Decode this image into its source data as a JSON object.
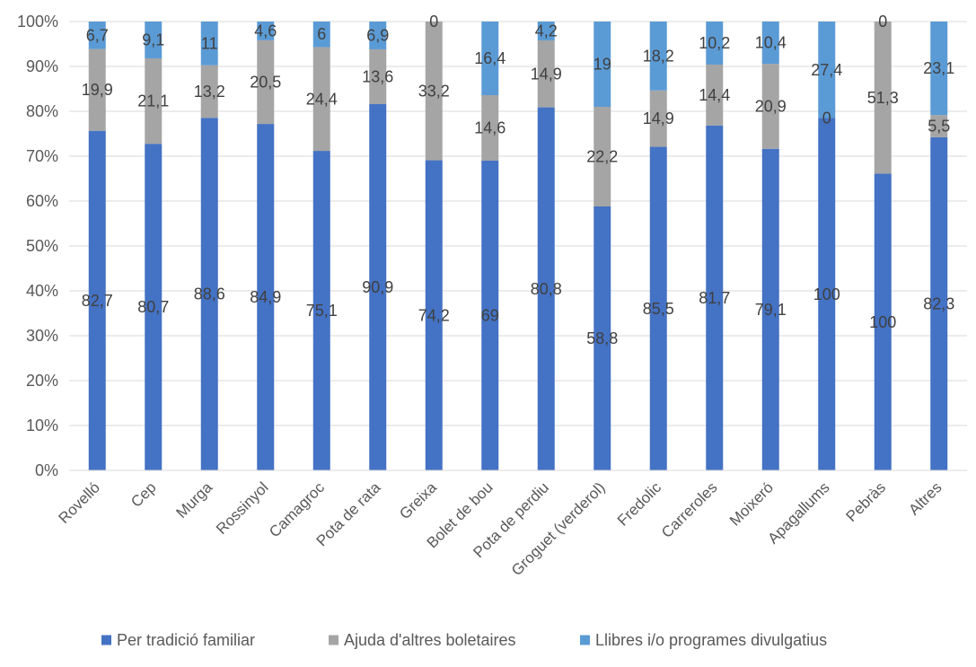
{
  "chart_data": {
    "type": "bar",
    "stacked": "percent",
    "categories": [
      "Rovelló",
      "Cep",
      "Murga",
      "Rossinyol",
      "Camagroc",
      "Pota de rata",
      "Greixa",
      "Bolet de bou",
      "Pota de perdiu",
      "Groguet (verderol)",
      "Fredolic",
      "Carreroles",
      "Moixeró",
      "Apagallums",
      "Pebràs",
      "Altres"
    ],
    "series": [
      {
        "name": "Per tradició familiar",
        "color": "#4472C4",
        "values": [
          82.7,
          80.7,
          88.6,
          84.9,
          75.1,
          90.9,
          74.2,
          69,
          80.8,
          58.8,
          85.5,
          81.7,
          79.1,
          100,
          100,
          82.3
        ]
      },
      {
        "name": "Ajuda d'altres boletaires",
        "color": "#A5A5A5",
        "values": [
          19.9,
          21.1,
          13.2,
          20.5,
          24.4,
          13.6,
          33.2,
          14.6,
          14.9,
          22.2,
          14.9,
          14.4,
          20.9,
          0,
          51.3,
          5.5
        ]
      },
      {
        "name": "Llibres i/o programes divulgatius",
        "color": "#5B9BD5",
        "values": [
          6.7,
          9.1,
          11,
          4.6,
          6,
          6.9,
          0,
          16.4,
          4.2,
          19,
          18.2,
          10.2,
          10.4,
          27.4,
          0,
          23.1
        ]
      }
    ],
    "yticks": [
      "0%",
      "10%",
      "20%",
      "30%",
      "40%",
      "50%",
      "60%",
      "70%",
      "80%",
      "90%",
      "100%"
    ],
    "ylim": [
      0,
      100
    ],
    "title": "",
    "xlabel": "",
    "ylabel": "",
    "grid": true,
    "legend_position": "bottom"
  }
}
